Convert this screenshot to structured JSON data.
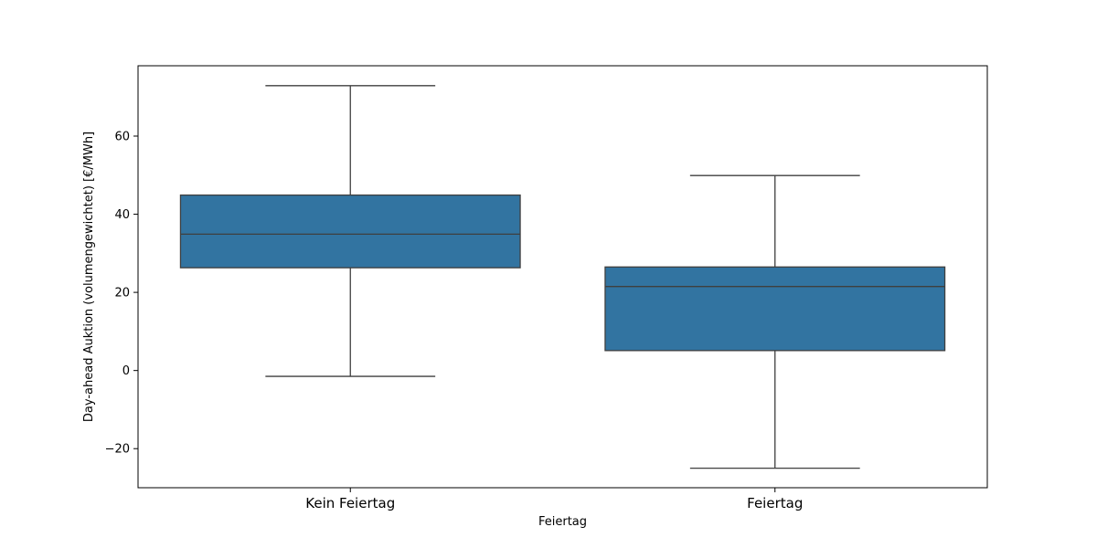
{
  "chart_data": {
    "type": "box",
    "xlabel": "Feiertag",
    "ylabel": "Day-ahead Auktion (volumengewichtet) [€/MWh]",
    "ylim": [
      -30,
      78
    ],
    "yticks": [
      -20,
      0,
      20,
      40,
      60
    ],
    "ytick_labels": [
      "−20",
      "0",
      "20",
      "40",
      "60"
    ],
    "grid": false,
    "legend": "none",
    "box_color": "#3274a1",
    "line_color": "#3f3f3f",
    "categories": [
      "Kein Feiertag",
      "Feiertag"
    ],
    "boxes": [
      {
        "category": "Kein Feiertag",
        "whisker_low": -1.5,
        "q1": 26.3,
        "median": 34.9,
        "q3": 44.9,
        "whisker_high": 72.9
      },
      {
        "category": "Feiertag",
        "whisker_low": -25.0,
        "q1": 5.1,
        "median": 21.5,
        "q3": 26.5,
        "whisker_high": 49.9
      }
    ]
  }
}
